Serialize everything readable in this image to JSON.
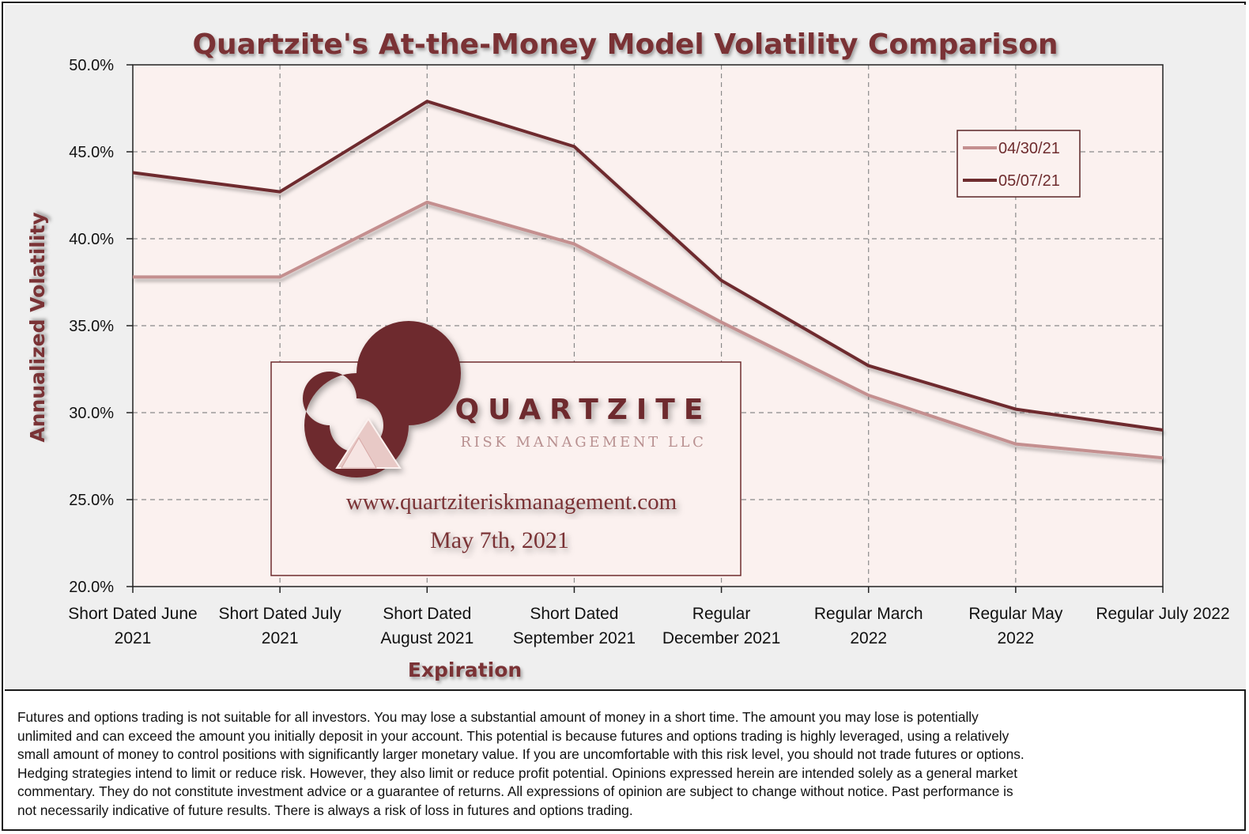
{
  "chart_data": {
    "type": "line",
    "title": "Quartzite's At-the-Money Model Volatility Comparison",
    "xlabel": "Expiration",
    "ylabel": "Annualized Volatility",
    "categories": [
      [
        "Short Dated June",
        "2021"
      ],
      [
        "Short Dated July",
        "2021"
      ],
      [
        "Short Dated",
        "August 2021"
      ],
      [
        "Short Dated",
        "September 2021"
      ],
      [
        "Regular",
        "December 2021"
      ],
      [
        "Regular March",
        "2022"
      ],
      [
        "Regular May",
        "2022"
      ],
      [
        "Regular July 2022",
        ""
      ]
    ],
    "yticks": [
      "20.0%",
      "25.0%",
      "30.0%",
      "35.0%",
      "40.0%",
      "45.0%",
      "50.0%"
    ],
    "ylim": [
      20,
      50
    ],
    "grid": true,
    "legend_position": "top-right",
    "series": [
      {
        "name": "04/30/21",
        "color": "#c48f8f",
        "values": [
          37.8,
          37.8,
          42.1,
          39.7,
          35.2,
          31.0,
          28.2,
          27.4
        ]
      },
      {
        "name": "05/07/21",
        "color": "#6e2c2e",
        "values": [
          43.8,
          42.7,
          47.9,
          45.3,
          37.6,
          32.7,
          30.2,
          29.0
        ]
      }
    ]
  },
  "watermark": {
    "company": "QUARTZITE",
    "subtitle": "RISK MANAGEMENT LLC",
    "url": "www.quartziteriskmanagement.com",
    "date": "May 7th, 2021"
  },
  "disclaimer": [
    "Futures and options trading is not suitable for all investors. You may lose a substantial amount of money in a short time. The amount you may lose is potentially",
    "unlimited and can exceed the amount you initially deposit in your account. This potential is because futures and options trading is highly leveraged, using a relatively",
    "small amount of money to control positions with significantly larger monetary value. If you are uncomfortable with this risk level, you should not trade futures or options.",
    "Hedging strategies intend to limit or reduce risk. However, they also limit or reduce profit potential. Opinions expressed herein are intended solely as a general market",
    "commentary. They do not constitute investment advice or a guarantee of returns. All expressions of opinion are subject to change without notice. Past performance is",
    "not necessarily indicative of future results. There is always a risk of loss in futures and options trading."
  ],
  "colors": {
    "title": "#7a3336",
    "plot_bg": "#fbf1ef",
    "axis": "#222222",
    "grid": "#8a8a8a",
    "logo": "#6e2c2e"
  }
}
